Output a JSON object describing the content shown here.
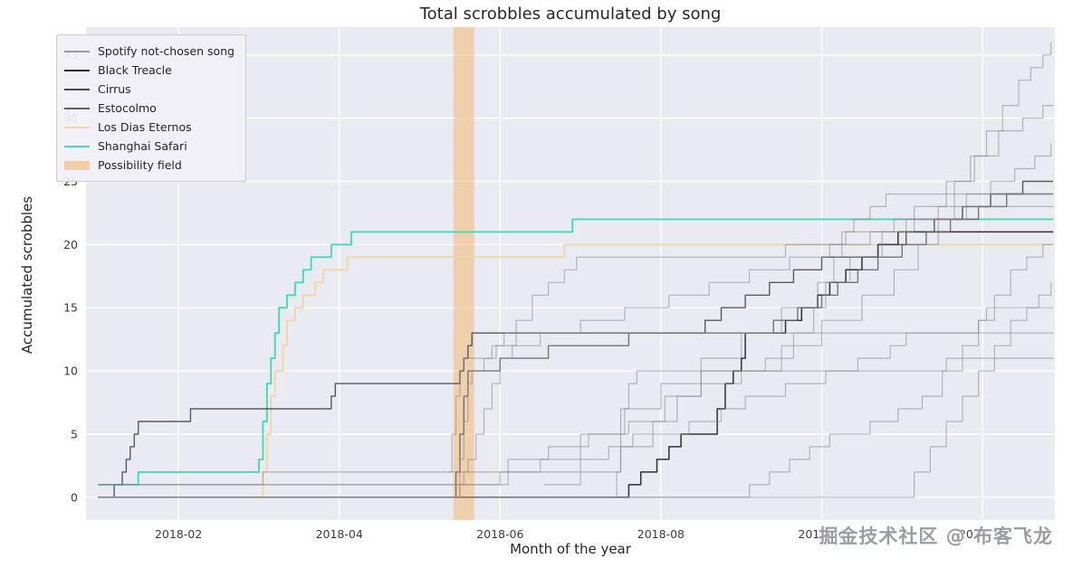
{
  "title": "Total scrobbles accumulated by song",
  "watermark": "掘金技术社区 @ 布客飞龙",
  "chart_data": {
    "type": "line",
    "step": true,
    "title": "Total scrobbles accumulated by song",
    "xlabel": "Month of the year",
    "ylabel": "Accumulated scrobbles",
    "background": "#eaeaf2",
    "grid_color": "#ffffff",
    "grid": true,
    "legend_position": "upper-left",
    "xlim": [
      0.85,
      12.9
    ],
    "ylim": [
      -1.8,
      37.2
    ],
    "x_ticks": [
      {
        "value": 2,
        "label": "2018-02"
      },
      {
        "value": 4,
        "label": "2018-04"
      },
      {
        "value": 6,
        "label": "2018-06"
      },
      {
        "value": 8,
        "label": "2018-08"
      },
      {
        "value": 10,
        "label": "2018-10"
      },
      {
        "value": 12,
        "label": "2018-12"
      }
    ],
    "y_ticks": [
      0,
      5,
      10,
      15,
      20,
      25,
      30,
      35
    ],
    "possibility_field": {
      "label": "Possibility field",
      "x_start": 5.42,
      "x_end": 5.68,
      "color": "#f3bc7f",
      "opacity": 0.6
    },
    "legend": [
      {
        "label": "Spotify not-chosen song",
        "color": "#9a9a9a",
        "type": "line"
      },
      {
        "label": "Black Treacle",
        "color": "#2b2b2b",
        "type": "line"
      },
      {
        "label": "Cirrus",
        "color": "#474747",
        "type": "line"
      },
      {
        "label": "Estocolmo",
        "color": "#5f5f5f",
        "type": "line"
      },
      {
        "label": "Los Dias Eternos",
        "color": "#f2d7a6",
        "type": "line"
      },
      {
        "label": "Shanghai Safari",
        "color": "#47d8b6",
        "type": "line"
      },
      {
        "label": "Possibility field",
        "color": "#f3bc7f",
        "type": "patch"
      }
    ],
    "series": [
      {
        "name": "Shanghai Safari",
        "color": "#47d8b6",
        "opacity": 1,
        "width": 1.9,
        "points": [
          [
            1.0,
            1
          ],
          [
            1.5,
            2
          ],
          [
            3.0,
            3
          ],
          [
            3.05,
            6
          ],
          [
            3.1,
            9
          ],
          [
            3.15,
            11
          ],
          [
            3.2,
            13
          ],
          [
            3.25,
            15
          ],
          [
            3.35,
            16
          ],
          [
            3.45,
            17
          ],
          [
            3.55,
            18
          ],
          [
            3.65,
            19
          ],
          [
            3.9,
            20
          ],
          [
            4.15,
            21
          ],
          [
            6.9,
            22
          ],
          [
            12.88,
            22
          ]
        ]
      },
      {
        "name": "Los Dias Eternos",
        "color": "#f2d7a6",
        "opacity": 1,
        "width": 1.9,
        "points": [
          [
            2.95,
            0
          ],
          [
            3.05,
            2
          ],
          [
            3.1,
            5
          ],
          [
            3.15,
            8
          ],
          [
            3.2,
            10
          ],
          [
            3.3,
            12
          ],
          [
            3.35,
            14
          ],
          [
            3.45,
            15
          ],
          [
            3.55,
            16
          ],
          [
            3.7,
            17
          ],
          [
            3.8,
            18
          ],
          [
            4.1,
            19
          ],
          [
            6.8,
            20
          ],
          [
            12.88,
            20
          ]
        ]
      },
      {
        "name": "Black Treacle",
        "color": "#1f1f1f",
        "opacity": 0.92,
        "width": 1.5,
        "points": [
          [
            1.0,
            0
          ],
          [
            7.6,
            1
          ],
          [
            7.75,
            2
          ],
          [
            7.95,
            3
          ],
          [
            8.1,
            4
          ],
          [
            8.25,
            5
          ],
          [
            8.7,
            7
          ],
          [
            8.8,
            9
          ],
          [
            8.9,
            10
          ],
          [
            9.0,
            11
          ],
          [
            9.05,
            13
          ],
          [
            9.55,
            14
          ],
          [
            9.75,
            15
          ],
          [
            9.95,
            16
          ],
          [
            10.1,
            17
          ],
          [
            10.3,
            18
          ],
          [
            10.5,
            19
          ],
          [
            10.7,
            20
          ],
          [
            10.95,
            21
          ],
          [
            12.88,
            21
          ]
        ]
      },
      {
        "name": "Cirrus",
        "color": "#474747",
        "opacity": 0.88,
        "width": 1.4,
        "points": [
          [
            1.0,
            0
          ],
          [
            1.2,
            1
          ],
          [
            1.3,
            2
          ],
          [
            1.35,
            3
          ],
          [
            1.4,
            4
          ],
          [
            1.45,
            5
          ],
          [
            1.5,
            6
          ],
          [
            2.15,
            7
          ],
          [
            3.9,
            8
          ],
          [
            3.95,
            9
          ],
          [
            5.5,
            10
          ],
          [
            5.55,
            11
          ],
          [
            5.6,
            12
          ],
          [
            5.65,
            13
          ],
          [
            8.55,
            14
          ],
          [
            8.75,
            15
          ],
          [
            9.05,
            16
          ],
          [
            9.35,
            17
          ],
          [
            9.65,
            18
          ],
          [
            10.0,
            19
          ],
          [
            10.7,
            20
          ],
          [
            11.05,
            21
          ],
          [
            11.4,
            22
          ],
          [
            11.75,
            23
          ],
          [
            12.1,
            24
          ],
          [
            12.5,
            25
          ],
          [
            12.88,
            25
          ]
        ]
      },
      {
        "name": "Estocolmo",
        "color": "#606060",
        "opacity": 0.85,
        "width": 1.4,
        "points": [
          [
            1.0,
            0
          ],
          [
            5.45,
            2
          ],
          [
            5.5,
            5
          ],
          [
            5.55,
            8
          ],
          [
            5.6,
            10
          ],
          [
            6.0,
            11
          ],
          [
            6.6,
            12
          ],
          [
            7.6,
            13
          ],
          [
            9.4,
            14
          ],
          [
            9.7,
            15
          ],
          [
            10.0,
            16
          ],
          [
            10.2,
            17
          ],
          [
            10.45,
            18
          ],
          [
            10.7,
            19
          ],
          [
            11.0,
            20
          ],
          [
            11.3,
            21
          ],
          [
            11.6,
            22
          ],
          [
            11.95,
            23
          ],
          [
            12.3,
            24
          ],
          [
            12.88,
            24
          ]
        ]
      },
      {
        "name": "Spotify not-chosen song 1",
        "color": "#858585",
        "opacity": 0.55,
        "width": 1.2,
        "points": [
          [
            1.0,
            1
          ],
          [
            5.55,
            2
          ],
          [
            6.1,
            3
          ],
          [
            6.6,
            4
          ],
          [
            7.1,
            5
          ],
          [
            7.6,
            6
          ],
          [
            8.05,
            8
          ],
          [
            8.5,
            9
          ],
          [
            9.0,
            10
          ],
          [
            9.5,
            12
          ],
          [
            10.0,
            14
          ],
          [
            10.5,
            16
          ],
          [
            10.9,
            18
          ],
          [
            11.2,
            20
          ],
          [
            11.45,
            22
          ],
          [
            11.65,
            25
          ],
          [
            11.85,
            27
          ],
          [
            12.05,
            29
          ],
          [
            12.25,
            31
          ],
          [
            12.45,
            33
          ],
          [
            12.6,
            34
          ],
          [
            12.75,
            35
          ],
          [
            12.85,
            36
          ]
        ]
      },
      {
        "name": "Spotify not-chosen song 2",
        "color": "#858585",
        "opacity": 0.55,
        "width": 1.2,
        "points": [
          [
            1.0,
            0
          ],
          [
            5.5,
            1
          ],
          [
            6.0,
            2
          ],
          [
            6.5,
            3
          ],
          [
            7.0,
            5
          ],
          [
            7.5,
            7
          ],
          [
            8.0,
            9
          ],
          [
            8.5,
            11
          ],
          [
            9.0,
            13
          ],
          [
            9.5,
            15
          ],
          [
            9.95,
            17
          ],
          [
            10.35,
            19
          ],
          [
            10.75,
            21
          ],
          [
            11.15,
            23
          ],
          [
            11.55,
            25
          ],
          [
            11.9,
            27
          ],
          [
            12.2,
            29
          ],
          [
            12.5,
            30
          ],
          [
            12.75,
            31
          ],
          [
            12.88,
            31
          ]
        ]
      },
      {
        "name": "Spotify not-chosen song 3",
        "color": "#858585",
        "opacity": 0.55,
        "width": 1.2,
        "points": [
          [
            1.0,
            1
          ],
          [
            3.05,
            2
          ],
          [
            5.6,
            3
          ],
          [
            5.7,
            5
          ],
          [
            5.8,
            7
          ],
          [
            5.9,
            9
          ],
          [
            6.0,
            11
          ],
          [
            6.15,
            12
          ],
          [
            6.5,
            13
          ],
          [
            7.0,
            14
          ],
          [
            7.55,
            15
          ],
          [
            8.1,
            16
          ],
          [
            8.6,
            17
          ],
          [
            9.1,
            18
          ],
          [
            9.6,
            19
          ],
          [
            10.1,
            20
          ],
          [
            10.6,
            21
          ],
          [
            11.05,
            22
          ],
          [
            11.45,
            23
          ],
          [
            11.8,
            24
          ],
          [
            12.1,
            25
          ],
          [
            12.4,
            26
          ],
          [
            12.65,
            27
          ],
          [
            12.85,
            28
          ]
        ]
      },
      {
        "name": "Spotify not-chosen song 4",
        "color": "#858585",
        "opacity": 0.55,
        "width": 1.2,
        "points": [
          [
            5.35,
            2
          ],
          [
            5.4,
            5
          ],
          [
            5.45,
            8
          ],
          [
            5.5,
            10
          ],
          [
            5.55,
            11
          ],
          [
            5.9,
            12
          ],
          [
            6.2,
            14
          ],
          [
            6.4,
            16
          ],
          [
            6.6,
            17
          ],
          [
            6.8,
            18
          ],
          [
            6.95,
            19
          ],
          [
            9.55,
            20
          ],
          [
            10.3,
            21
          ],
          [
            10.9,
            22
          ],
          [
            11.8,
            23
          ],
          [
            12.88,
            23
          ]
        ]
      },
      {
        "name": "Spotify not-chosen song 5",
        "color": "#858585",
        "opacity": 0.55,
        "width": 1.2,
        "points": [
          [
            6.55,
            1
          ],
          [
            7.0,
            2
          ],
          [
            7.5,
            4
          ],
          [
            7.9,
            6
          ],
          [
            8.2,
            8
          ],
          [
            8.5,
            10
          ],
          [
            9.3,
            11
          ],
          [
            9.65,
            13
          ],
          [
            9.9,
            15
          ],
          [
            10.05,
            17
          ],
          [
            10.15,
            19
          ],
          [
            10.25,
            21
          ],
          [
            10.4,
            22
          ],
          [
            10.6,
            23
          ],
          [
            10.8,
            24
          ],
          [
            12.88,
            24
          ]
        ]
      },
      {
        "name": "Spotify not-chosen song 6",
        "color": "#858585",
        "opacity": 0.55,
        "width": 1.2,
        "points": [
          [
            1.0,
            0
          ],
          [
            5.5,
            3
          ],
          [
            5.55,
            6
          ],
          [
            5.6,
            9
          ],
          [
            5.65,
            10
          ],
          [
            5.8,
            11
          ],
          [
            5.95,
            12
          ],
          [
            6.05,
            13
          ],
          [
            12.88,
            13
          ]
        ]
      },
      {
        "name": "Spotify not-chosen song 7",
        "color": "#858585",
        "opacity": 0.55,
        "width": 1.2,
        "points": [
          [
            1.0,
            0
          ],
          [
            7.45,
            2
          ],
          [
            7.5,
            5
          ],
          [
            7.55,
            7
          ],
          [
            7.6,
            9
          ],
          [
            7.7,
            10
          ],
          [
            10.45,
            11
          ],
          [
            10.85,
            12
          ],
          [
            11.05,
            13
          ],
          [
            11.95,
            14
          ],
          [
            12.05,
            15
          ],
          [
            12.88,
            15
          ]
        ]
      },
      {
        "name": "Spotify not-chosen song 8",
        "color": "#858585",
        "opacity": 0.55,
        "width": 1.2,
        "points": [
          [
            1.0,
            0
          ],
          [
            9.1,
            1
          ],
          [
            9.35,
            2
          ],
          [
            9.6,
            3
          ],
          [
            9.85,
            4
          ],
          [
            10.1,
            5
          ],
          [
            10.6,
            6
          ],
          [
            10.95,
            7
          ],
          [
            11.25,
            8
          ],
          [
            11.5,
            10
          ],
          [
            11.75,
            12
          ],
          [
            11.95,
            14
          ],
          [
            12.15,
            16
          ],
          [
            12.35,
            18
          ],
          [
            12.55,
            19
          ],
          [
            12.75,
            20
          ],
          [
            12.88,
            20
          ]
        ]
      },
      {
        "name": "Spotify not-chosen song 9",
        "color": "#858585",
        "opacity": 0.55,
        "width": 1.2,
        "points": [
          [
            1.0,
            0
          ],
          [
            11.15,
            2
          ],
          [
            11.35,
            4
          ],
          [
            11.55,
            6
          ],
          [
            11.75,
            8
          ],
          [
            11.95,
            10
          ],
          [
            12.15,
            12
          ],
          [
            12.35,
            14
          ],
          [
            12.55,
            15
          ],
          [
            12.7,
            16
          ],
          [
            12.85,
            17
          ]
        ]
      },
      {
        "name": "Spotify not-chosen song 10",
        "color": "#858585",
        "opacity": 0.55,
        "width": 1.2,
        "points": [
          [
            1.0,
            1
          ],
          [
            6.1,
            2
          ],
          [
            7.0,
            3
          ],
          [
            7.35,
            4
          ],
          [
            7.65,
            5
          ],
          [
            8.35,
            6
          ],
          [
            8.75,
            7
          ],
          [
            9.05,
            8
          ],
          [
            9.55,
            9
          ],
          [
            10.05,
            10
          ],
          [
            11.55,
            11
          ],
          [
            12.88,
            11
          ]
        ]
      }
    ]
  }
}
